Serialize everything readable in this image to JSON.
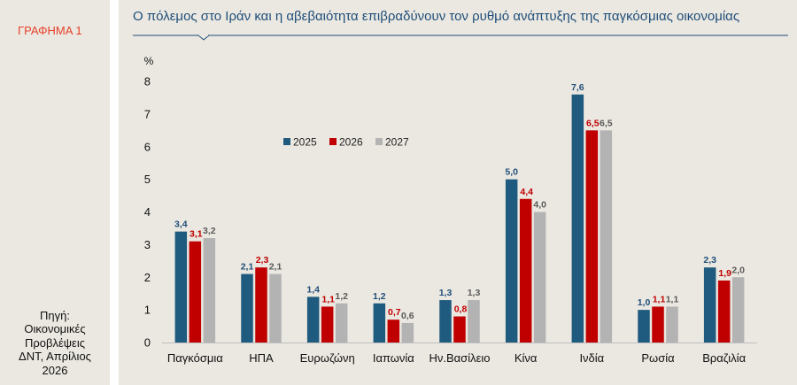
{
  "figure_label": "ΓΡΑΦΗΜΑ 1",
  "source_lines": [
    "Πηγή:",
    "Οικονομικές",
    "Προβλέψεις",
    "ΔΝΤ, Απρίλιος",
    "2026"
  ],
  "colors": {
    "background": "#ebe8e1",
    "title": "#1f4e79",
    "label": "#e5402a",
    "series_2025": "#1f5b7e",
    "series_2026": "#c00000",
    "series_2027": "#b3b3b3"
  },
  "chart_data": {
    "type": "bar",
    "title": "Ο πόλεμος στο Ιράν και η αβεβαιότητα επιβραδύνουν τον ρυθμό ανάπτυξης της παγκόσμιας οικονομίας",
    "ylabel": "%",
    "xlabel": "",
    "ylim": [
      0,
      8
    ],
    "yticks": [
      0,
      1,
      2,
      3,
      4,
      5,
      6,
      7,
      8
    ],
    "grid": false,
    "legend_position": "upper-left",
    "categories": [
      "Παγκόσμια",
      "ΗΠΑ",
      "Ευρωζώνη",
      "Ιαπωνία",
      "Ην.Βασίλειο",
      "Κίνα",
      "Ινδία",
      "Ρωσία",
      "Βραζιλία"
    ],
    "series": [
      {
        "name": "2025",
        "color": "#1f5b7e",
        "label_color": "#1f4e79",
        "values": [
          3.4,
          2.1,
          1.4,
          1.2,
          1.3,
          5.0,
          7.6,
          1.0,
          2.3
        ],
        "labels": [
          "3,4",
          "2,1",
          "1,4",
          "1,2",
          "1,3",
          "5,0",
          "7,6",
          "1,0",
          "2,3"
        ]
      },
      {
        "name": "2026",
        "color": "#c00000",
        "label_color": "#c00000",
        "values": [
          3.1,
          2.3,
          1.1,
          0.7,
          0.8,
          4.4,
          6.5,
          1.1,
          1.9
        ],
        "labels": [
          "3,1",
          "2,3",
          "1,1",
          "0,7",
          "0,8",
          "4,4",
          "6,5",
          "1,1",
          "1,9"
        ]
      },
      {
        "name": "2027",
        "color": "#b3b3b3",
        "label_color": "#595959",
        "values": [
          3.2,
          2.1,
          1.2,
          0.6,
          1.3,
          4.0,
          6.5,
          1.1,
          2.0
        ],
        "labels": [
          "3,2",
          "2,1",
          "1,2",
          "0,6",
          "1,3",
          "4,0",
          "6,5",
          "1,1",
          "2,0"
        ]
      }
    ]
  }
}
